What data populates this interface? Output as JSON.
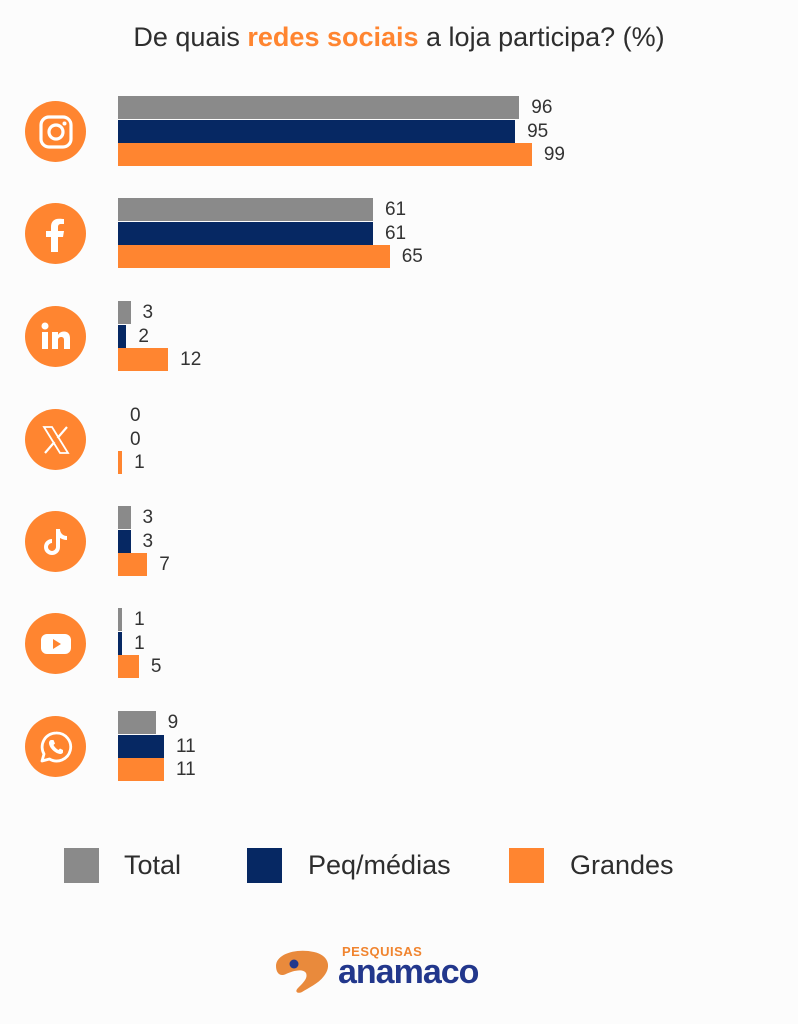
{
  "title": {
    "prefix": "De quais ",
    "highlight": "redes sociais",
    "suffix": " a loja participa? (%)"
  },
  "colors": {
    "total": "#8a8a8a",
    "peq_medias": "#062863",
    "grandes": "#ff8530",
    "icon_bg": "#ff8530"
  },
  "legend": {
    "total": "Total",
    "peq_medias": "Peq/médias",
    "grandes": "Grandes"
  },
  "logo": {
    "sub": "PESQUISAS",
    "main": "anamaco"
  },
  "rows": [
    {
      "network": "Instagram",
      "icon": "instagram-icon",
      "labels": [
        "96",
        "95",
        "99"
      ]
    },
    {
      "network": "Facebook",
      "icon": "facebook-icon",
      "labels": [
        "61",
        "61",
        "65"
      ]
    },
    {
      "network": "LinkedIn",
      "icon": "linkedin-icon",
      "labels": [
        "3",
        "2",
        "12"
      ]
    },
    {
      "network": "X",
      "icon": "x-icon",
      "labels": [
        "0",
        "0",
        "1"
      ]
    },
    {
      "network": "TikTok",
      "icon": "tiktok-icon",
      "labels": [
        "3",
        "3",
        "7"
      ]
    },
    {
      "network": "YouTube",
      "icon": "youtube-icon",
      "labels": [
        "1",
        "1",
        "5"
      ]
    },
    {
      "network": "WhatsApp",
      "icon": "whatsapp-icon",
      "labels": [
        "9",
        "11",
        "11"
      ]
    }
  ],
  "chart_data": {
    "type": "bar",
    "orientation": "horizontal",
    "title": "De quais redes sociais a loja participa? (%)",
    "categories": [
      "Instagram",
      "Facebook",
      "LinkedIn",
      "X",
      "TikTok",
      "YouTube",
      "WhatsApp"
    ],
    "series": [
      {
        "name": "Total",
        "color": "#8a8a8a",
        "values": [
          96,
          61,
          3,
          0,
          3,
          1,
          9
        ]
      },
      {
        "name": "Peq/médias",
        "color": "#062863",
        "values": [
          95,
          61,
          2,
          0,
          3,
          1,
          11
        ]
      },
      {
        "name": "Grandes",
        "color": "#ff8530",
        "values": [
          99,
          65,
          12,
          1,
          7,
          5,
          11
        ]
      }
    ],
    "xlabel": "",
    "ylabel": "",
    "xlim": [
      0,
      100
    ],
    "grid": false,
    "data_labels": true,
    "legend_position": "bottom"
  }
}
